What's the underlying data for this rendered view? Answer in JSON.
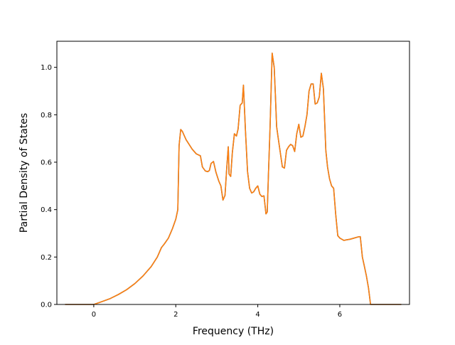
{
  "chart_data": {
    "type": "line",
    "title": "",
    "xlabel": "Frequency (THz)",
    "ylabel": "Partial Density of States",
    "xlim": [
      -0.9,
      7.7
    ],
    "ylim": [
      0.0,
      1.11
    ],
    "xticks": [
      0,
      2,
      4,
      6
    ],
    "yticks": [
      0.0,
      0.2,
      0.4,
      0.6,
      0.8,
      1.0
    ],
    "xtick_labels": [
      "0",
      "2",
      "4",
      "6"
    ],
    "ytick_labels": [
      "0.0",
      "0.2",
      "0.4",
      "0.6",
      "0.8",
      "1.0"
    ],
    "grid": false,
    "legend": "none",
    "series": [
      {
        "color": "#1f77b4",
        "x": [
          -0.7,
          -0.3,
          0.0,
          0.2,
          0.4,
          0.6,
          0.8,
          1.0,
          1.2,
          1.4,
          1.55,
          1.65,
          1.72,
          1.82,
          1.92,
          2.0,
          2.05,
          2.08,
          2.12,
          2.16,
          2.25,
          2.4,
          2.5,
          2.6,
          2.65,
          2.72,
          2.78,
          2.82,
          2.86,
          2.92,
          2.98,
          3.05,
          3.1,
          3.15,
          3.2,
          3.24,
          3.28,
          3.3,
          3.34,
          3.38,
          3.43,
          3.48,
          3.52,
          3.57,
          3.62,
          3.65,
          3.7,
          3.75,
          3.8,
          3.85,
          3.9,
          3.95,
          4.0,
          4.05,
          4.1,
          4.15,
          4.2,
          4.23,
          4.26,
          4.3,
          4.35,
          4.4,
          4.43,
          4.46,
          4.5,
          4.55,
          4.6,
          4.65,
          4.7,
          4.75,
          4.8,
          4.85,
          4.9,
          4.95,
          5.0,
          5.05,
          5.1,
          5.15,
          5.2,
          5.25,
          5.3,
          5.35,
          5.4,
          5.45,
          5.5,
          5.55,
          5.6,
          5.63,
          5.66,
          5.7,
          5.75,
          5.8,
          5.85,
          5.9,
          5.95,
          6.0,
          6.05,
          6.08,
          6.1,
          6.15,
          6.25,
          6.35,
          6.45,
          6.5,
          6.55,
          6.6,
          6.65,
          6.7,
          6.75,
          6.8,
          6.85,
          6.9,
          7.0,
          7.5
        ],
        "y": [
          0.0,
          0.0,
          0.0,
          0.012,
          0.025,
          0.042,
          0.062,
          0.088,
          0.12,
          0.16,
          0.2,
          0.24,
          0.255,
          0.28,
          0.32,
          0.36,
          0.4,
          0.67,
          0.738,
          0.73,
          0.695,
          0.655,
          0.635,
          0.627,
          0.58,
          0.563,
          0.56,
          0.565,
          0.595,
          0.603,
          0.557,
          0.52,
          0.5,
          0.44,
          0.46,
          0.57,
          0.665,
          0.55,
          0.54,
          0.64,
          0.72,
          0.71,
          0.74,
          0.84,
          0.85,
          0.925,
          0.73,
          0.56,
          0.49,
          0.47,
          0.475,
          0.49,
          0.5,
          0.465,
          0.455,
          0.458,
          0.382,
          0.39,
          0.55,
          0.75,
          1.06,
          1.0,
          0.88,
          0.75,
          0.7,
          0.64,
          0.58,
          0.575,
          0.65,
          0.665,
          0.675,
          0.67,
          0.645,
          0.72,
          0.76,
          0.705,
          0.71,
          0.75,
          0.8,
          0.9,
          0.93,
          0.93,
          0.845,
          0.85,
          0.875,
          0.975,
          0.91,
          0.78,
          0.65,
          0.58,
          0.53,
          0.5,
          0.49,
          0.38,
          0.29,
          0.28,
          0.275,
          0.272,
          0.27,
          0.272,
          0.275,
          0.28,
          0.285,
          0.286,
          0.2,
          0.16,
          0.12,
          0.07,
          0.0,
          0.0,
          0.0,
          0.0,
          0.0,
          0.0
        ]
      },
      {
        "color": "#ff7f0e",
        "x": [
          -0.7,
          -0.3,
          0.0,
          0.2,
          0.4,
          0.6,
          0.8,
          1.0,
          1.2,
          1.4,
          1.55,
          1.65,
          1.72,
          1.82,
          1.92,
          2.0,
          2.05,
          2.08,
          2.12,
          2.16,
          2.25,
          2.4,
          2.5,
          2.6,
          2.65,
          2.72,
          2.78,
          2.82,
          2.86,
          2.92,
          2.98,
          3.05,
          3.1,
          3.15,
          3.2,
          3.24,
          3.28,
          3.3,
          3.34,
          3.38,
          3.43,
          3.48,
          3.52,
          3.57,
          3.62,
          3.65,
          3.7,
          3.75,
          3.8,
          3.85,
          3.9,
          3.95,
          4.0,
          4.05,
          4.1,
          4.15,
          4.2,
          4.23,
          4.26,
          4.3,
          4.35,
          4.4,
          4.43,
          4.46,
          4.5,
          4.55,
          4.6,
          4.65,
          4.7,
          4.75,
          4.8,
          4.85,
          4.9,
          4.95,
          5.0,
          5.05,
          5.1,
          5.15,
          5.2,
          5.25,
          5.3,
          5.35,
          5.4,
          5.45,
          5.5,
          5.55,
          5.6,
          5.63,
          5.66,
          5.7,
          5.75,
          5.8,
          5.85,
          5.9,
          5.95,
          6.0,
          6.05,
          6.08,
          6.1,
          6.15,
          6.25,
          6.35,
          6.45,
          6.5,
          6.55,
          6.6,
          6.65,
          6.7,
          6.75,
          6.8,
          6.85,
          6.9,
          7.0,
          7.5
        ],
        "y": [
          0.0,
          0.0,
          0.0,
          0.012,
          0.025,
          0.042,
          0.062,
          0.088,
          0.12,
          0.16,
          0.2,
          0.24,
          0.255,
          0.28,
          0.32,
          0.36,
          0.4,
          0.67,
          0.738,
          0.73,
          0.695,
          0.655,
          0.635,
          0.627,
          0.58,
          0.563,
          0.56,
          0.565,
          0.595,
          0.603,
          0.557,
          0.52,
          0.5,
          0.44,
          0.46,
          0.57,
          0.665,
          0.55,
          0.54,
          0.64,
          0.72,
          0.71,
          0.74,
          0.84,
          0.85,
          0.925,
          0.73,
          0.56,
          0.49,
          0.47,
          0.475,
          0.49,
          0.5,
          0.465,
          0.455,
          0.458,
          0.382,
          0.39,
          0.55,
          0.75,
          1.06,
          1.0,
          0.88,
          0.75,
          0.7,
          0.64,
          0.58,
          0.575,
          0.65,
          0.665,
          0.675,
          0.67,
          0.645,
          0.72,
          0.76,
          0.705,
          0.71,
          0.75,
          0.8,
          0.9,
          0.93,
          0.93,
          0.845,
          0.85,
          0.875,
          0.975,
          0.91,
          0.78,
          0.65,
          0.58,
          0.53,
          0.5,
          0.49,
          0.38,
          0.29,
          0.28,
          0.275,
          0.272,
          0.27,
          0.272,
          0.275,
          0.28,
          0.285,
          0.286,
          0.2,
          0.16,
          0.12,
          0.07,
          0.0,
          0.0,
          0.0,
          0.0,
          0.0,
          0.0
        ]
      }
    ]
  }
}
